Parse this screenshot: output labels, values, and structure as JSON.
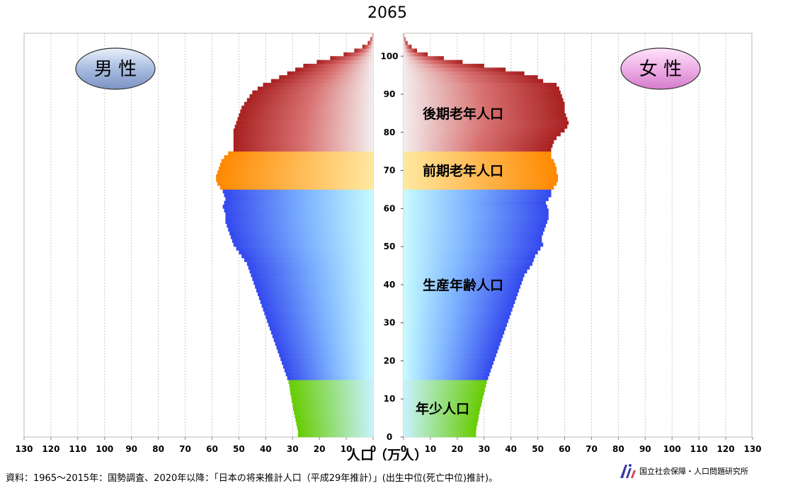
{
  "chart_data": {
    "type": "bar",
    "orientation": "horizontal-pyramid",
    "title": "2065",
    "xlabel": "人口（万人）",
    "left_label": "男 性",
    "right_label": "女 性",
    "x_ticks": [
      130,
      120,
      110,
      100,
      90,
      80,
      70,
      60,
      50,
      40,
      30,
      20,
      10,
      0
    ],
    "y_ticks": [
      0,
      10,
      20,
      30,
      40,
      50,
      60,
      70,
      80,
      90,
      100
    ],
    "xlim": [
      0,
      130
    ],
    "ylim": [
      0,
      105
    ],
    "grid": true,
    "age_groups": [
      {
        "name": "年少人口",
        "from": 0,
        "to": 14,
        "color": "#66cc00"
      },
      {
        "name": "生産年齢人口",
        "from": 15,
        "to": 64,
        "color": "#3355ee"
      },
      {
        "name": "前期老年人口",
        "from": 65,
        "to": 74,
        "color": "#ff8800"
      },
      {
        "name": "後期老年人口",
        "from": 75,
        "to": 105,
        "color": "#aa2222"
      }
    ],
    "series": [
      {
        "name": "男 性",
        "ages": [
          0,
          1,
          2,
          3,
          4,
          5,
          6,
          7,
          8,
          9,
          10,
          11,
          12,
          13,
          14,
          15,
          16,
          17,
          18,
          19,
          20,
          21,
          22,
          23,
          24,
          25,
          26,
          27,
          28,
          29,
          30,
          31,
          32,
          33,
          34,
          35,
          36,
          37,
          38,
          39,
          40,
          41,
          42,
          43,
          44,
          45,
          46,
          47,
          48,
          49,
          50,
          51,
          52,
          53,
          54,
          55,
          56,
          57,
          58,
          59,
          60,
          61,
          62,
          63,
          64,
          65,
          66,
          67,
          68,
          69,
          70,
          71,
          72,
          73,
          74,
          75,
          76,
          77,
          78,
          79,
          80,
          81,
          82,
          83,
          84,
          85,
          86,
          87,
          88,
          89,
          90,
          91,
          92,
          93,
          94,
          95,
          96,
          97,
          98,
          99,
          100,
          101,
          102,
          103,
          104,
          105
        ],
        "values": [
          28,
          28,
          28.3,
          28.6,
          28.9,
          29.2,
          29.5,
          29.8,
          30,
          30.3,
          30.5,
          30.8,
          31,
          31.2,
          31.5,
          32,
          32.5,
          33,
          33.5,
          34,
          34.5,
          35,
          35.5,
          36,
          36.5,
          37,
          37.5,
          38,
          38.5,
          39,
          39.5,
          40,
          40.5,
          41,
          41.5,
          42,
          42.5,
          43,
          43.5,
          44,
          44.5,
          45,
          45.5,
          46,
          46.5,
          47,
          48,
          49,
          50,
          51,
          52,
          52.5,
          53,
          53.5,
          54,
          54.5,
          55,
          55,
          55,
          55.5,
          56,
          55.5,
          55,
          55.5,
          56,
          57,
          58,
          58.5,
          58.5,
          58,
          57.5,
          57,
          56.5,
          55.5,
          54,
          52,
          52,
          52,
          52,
          52,
          52,
          51.5,
          51,
          50.5,
          50,
          49.5,
          49,
          48,
          47,
          46,
          45,
          43,
          41,
          38,
          35,
          32,
          29,
          26,
          21,
          16,
          11,
          7,
          4,
          2,
          1,
          0.3
        ]
      },
      {
        "name": "女 性",
        "ages": [
          0,
          1,
          2,
          3,
          4,
          5,
          6,
          7,
          8,
          9,
          10,
          11,
          12,
          13,
          14,
          15,
          16,
          17,
          18,
          19,
          20,
          21,
          22,
          23,
          24,
          25,
          26,
          27,
          28,
          29,
          30,
          31,
          32,
          33,
          34,
          35,
          36,
          37,
          38,
          39,
          40,
          41,
          42,
          43,
          44,
          45,
          46,
          47,
          48,
          49,
          50,
          51,
          52,
          53,
          54,
          55,
          56,
          57,
          58,
          59,
          60,
          61,
          62,
          63,
          64,
          65,
          66,
          67,
          68,
          69,
          70,
          71,
          72,
          73,
          74,
          75,
          76,
          77,
          78,
          79,
          80,
          81,
          82,
          83,
          84,
          85,
          86,
          87,
          88,
          89,
          90,
          91,
          92,
          93,
          94,
          95,
          96,
          97,
          98,
          99,
          100,
          101,
          102,
          103,
          104,
          105
        ],
        "values": [
          27,
          27,
          27.2,
          27.5,
          27.8,
          28,
          28.3,
          28.6,
          29,
          29.3,
          29.6,
          30,
          30.3,
          30.7,
          31,
          31.5,
          32,
          32.5,
          33,
          33.5,
          34,
          34.5,
          35,
          35.5,
          36,
          36.5,
          37,
          37.5,
          38,
          38.5,
          39,
          39.5,
          40,
          40.5,
          41,
          41.5,
          42,
          42.5,
          43,
          43.5,
          44,
          44.5,
          45,
          46,
          47,
          48,
          48.5,
          49,
          50,
          51,
          52,
          51.5,
          51.5,
          52,
          52.5,
          53,
          53.5,
          54,
          54,
          54,
          53.5,
          53,
          54,
          55,
          55,
          56,
          57,
          57.5,
          57.5,
          57,
          57,
          56.5,
          56,
          55,
          55,
          55,
          55.5,
          56,
          57,
          58.5,
          60,
          61,
          61.5,
          61,
          60.5,
          60,
          60,
          60,
          59.5,
          59,
          58.5,
          58,
          57,
          52,
          50,
          45,
          38,
          30,
          22,
          15,
          9,
          5,
          3,
          1.5,
          0.7,
          0.2
        ]
      }
    ]
  },
  "source_note": "資料：1965～2015年：国勢調査、2020年以降：「日本の将来推計人口（平成29年推計）」(出生中位(死亡中位)推計)。",
  "logo_text": "国立社会保障・人口問題研究所"
}
